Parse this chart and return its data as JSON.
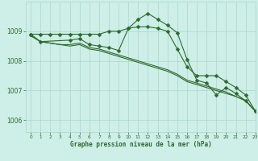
{
  "background_color": "#ceeee8",
  "grid_color": "#a8d8cc",
  "line_color": "#2d6a2d",
  "xlabel": "Graphe pression niveau de la mer (hPa)",
  "xlim": [
    -0.5,
    23
  ],
  "ylim": [
    1005.6,
    1010.0
  ],
  "yticks": [
    1006,
    1007,
    1008,
    1009
  ],
  "xticks": [
    0,
    1,
    2,
    3,
    4,
    5,
    6,
    7,
    8,
    9,
    10,
    11,
    12,
    13,
    14,
    15,
    16,
    17,
    18,
    19,
    20,
    21,
    22,
    23
  ],
  "line_flat_x": [
    0,
    1,
    2,
    3,
    4,
    5,
    6,
    7,
    8,
    9,
    10,
    11,
    12,
    13,
    14,
    15,
    16,
    17,
    18,
    19,
    20,
    21,
    22,
    23
  ],
  "line_flat_y": [
    1008.9,
    1008.9,
    1008.9,
    1008.9,
    1008.9,
    1008.9,
    1008.9,
    1008.9,
    1009.0,
    1009.0,
    1009.1,
    1009.15,
    1009.15,
    1009.1,
    1009.0,
    1008.4,
    1007.8,
    1007.5,
    1007.5,
    1007.5,
    1007.3,
    1007.1,
    1006.85,
    1006.3
  ],
  "line_wiggly_x": [
    0,
    1,
    4,
    5,
    6,
    7,
    8,
    9,
    10,
    11,
    12,
    13,
    14,
    15,
    16,
    17,
    18,
    19,
    20,
    21,
    22,
    23
  ],
  "line_wiggly_y": [
    1008.9,
    1008.65,
    1008.7,
    1008.75,
    1008.55,
    1008.5,
    1008.45,
    1008.35,
    1009.1,
    1009.4,
    1009.6,
    1009.4,
    1009.2,
    1008.95,
    1008.05,
    1007.35,
    1007.25,
    1006.85,
    1007.1,
    1006.9,
    1006.65,
    1006.3
  ],
  "line_decline1_x": [
    0,
    1,
    2,
    3,
    4,
    5,
    6,
    7,
    8,
    9,
    10,
    11,
    12,
    13,
    14,
    15,
    16,
    17,
    18,
    19,
    20,
    21,
    22,
    23
  ],
  "line_decline1_y": [
    1008.85,
    1008.65,
    1008.6,
    1008.55,
    1008.5,
    1008.55,
    1008.4,
    1008.35,
    1008.25,
    1008.15,
    1008.05,
    1007.95,
    1007.85,
    1007.75,
    1007.65,
    1007.5,
    1007.3,
    1007.2,
    1007.1,
    1007.0,
    1006.9,
    1006.8,
    1006.65,
    1006.3
  ],
  "line_decline2_x": [
    0,
    1,
    2,
    3,
    4,
    5,
    6,
    7,
    8,
    9,
    10,
    11,
    12,
    13,
    14,
    15,
    16,
    17,
    18,
    19,
    20,
    21,
    22,
    23
  ],
  "line_decline2_y": [
    1008.85,
    1008.65,
    1008.6,
    1008.55,
    1008.55,
    1008.6,
    1008.45,
    1008.4,
    1008.3,
    1008.2,
    1008.1,
    1008.0,
    1007.9,
    1007.8,
    1007.7,
    1007.55,
    1007.35,
    1007.25,
    1007.15,
    1007.05,
    1006.95,
    1006.8,
    1006.67,
    1006.3
  ]
}
